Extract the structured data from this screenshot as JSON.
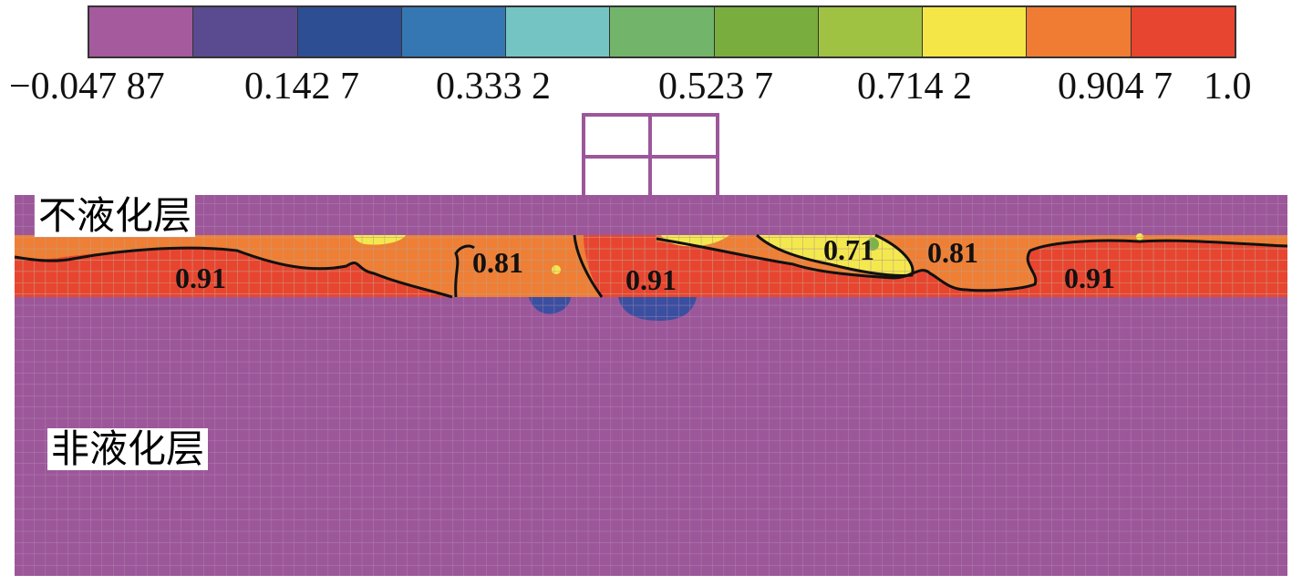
{
  "legend": {
    "colors": [
      "#a45a9c",
      "#5a4a90",
      "#2d4e92",
      "#3577b2",
      "#74c4c4",
      "#72b46a",
      "#79ad3e",
      "#9fc242",
      "#f5e647",
      "#f07c34",
      "#e7452f"
    ],
    "ticks": [
      "−0.047 87",
      "0.142 7",
      "0.333 2",
      "0.523 7",
      "0.714 2",
      "0.904 7",
      "1.0"
    ]
  },
  "layers": {
    "top_label": "不液化层",
    "bottom_label": "非液化层"
  },
  "contour_labels": [
    "0.91",
    "0.81",
    "0.91",
    "0.71",
    "0.81",
    "0.91"
  ],
  "colors": {
    "background_layer": "#9c579a",
    "liquefiable_orange": "#ee7f35",
    "liquefiable_red": "#e84530",
    "yellow_zone": "#f3e94e",
    "green_zone": "#7cb24a",
    "blue_zone": "#3b4fa0",
    "structure": "#9c579a",
    "contour_line": "#111111",
    "grid_line": "#b890b4"
  }
}
